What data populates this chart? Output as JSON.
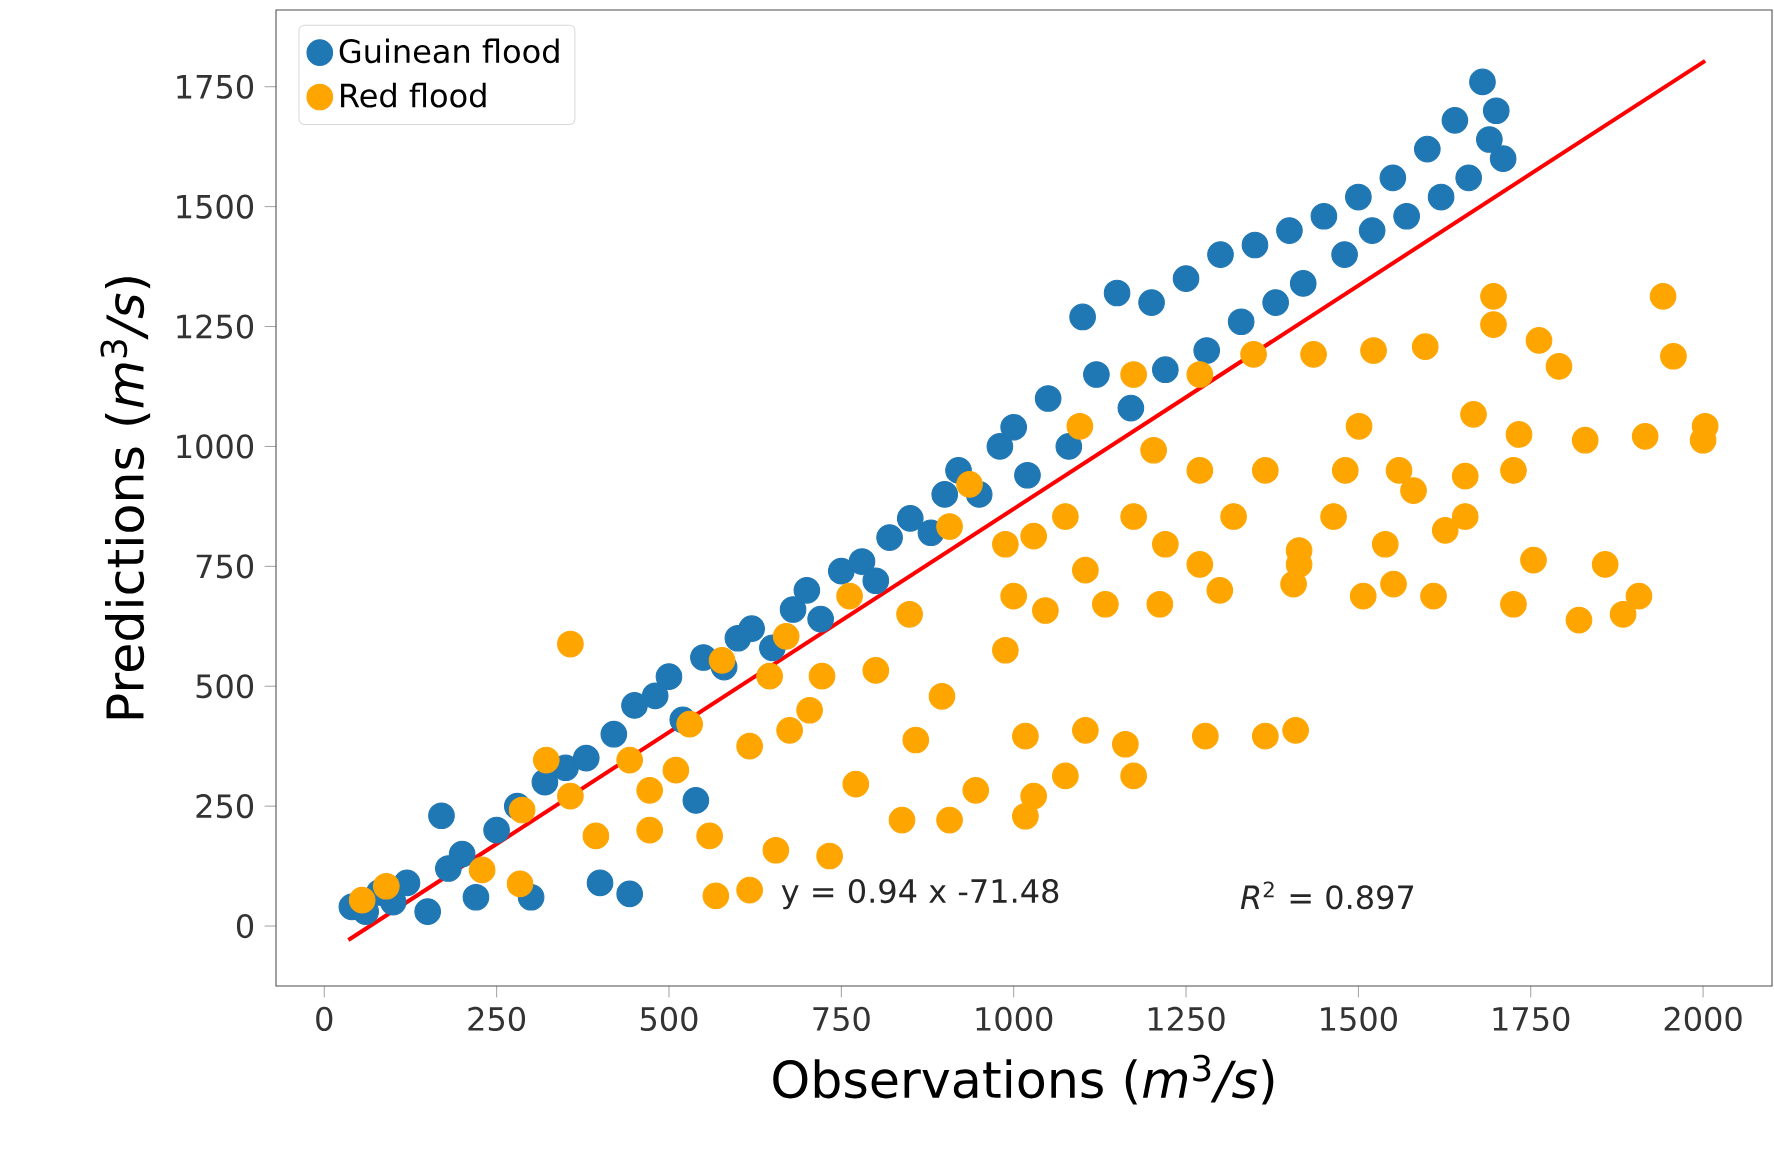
{
  "chart_data": {
    "type": "scatter",
    "xlabel": "Observations (*m*$^{3}$*/s*)",
    "ylabel": "Predictions (*m*$^{3}$*/s*)",
    "xlim": [
      -70,
      2100
    ],
    "ylim": [
      -125,
      1910
    ],
    "xticks": [
      0,
      250,
      500,
      750,
      1000,
      1250,
      1500,
      1750,
      2000
    ],
    "yticks": [
      0,
      250,
      500,
      750,
      1000,
      1250,
      1500,
      1750
    ],
    "grid": false,
    "legend": "top left",
    "annotations": [
      "y = 0.94 x -71.48",
      "*R*$^{2}$ = 0.897"
    ],
    "series": [
      {
        "name": "Guinean flood",
        "color": "#1f77b4",
        "marker": "circle",
        "x": [
          40,
          60,
          80,
          100,
          120,
          150,
          170,
          180,
          200,
          220,
          250,
          280,
          300,
          320,
          350,
          380,
          400,
          420,
          443,
          450,
          480,
          500,
          539,
          520,
          550,
          580,
          600,
          620,
          650,
          680,
          700,
          720,
          750,
          780,
          800,
          820,
          850,
          880,
          900,
          920,
          950,
          980,
          1000,
          1020,
          1050,
          1080,
          1100,
          1120,
          1150,
          1170,
          1200,
          1220,
          1250,
          1280,
          1300,
          1330,
          1350,
          1380,
          1400,
          1420,
          1450,
          1480,
          1500,
          1520,
          1550,
          1570,
          1600,
          1620,
          1640,
          1660,
          1680,
          1700,
          1710,
          1690
        ],
        "values": [
          40,
          30,
          70,
          50,
          90,
          30,
          230,
          120,
          150,
          60,
          200,
          250,
          60,
          300,
          330,
          350,
          90,
          400,
          67,
          460,
          480,
          520,
          262,
          430,
          560,
          540,
          600,
          620,
          580,
          660,
          700,
          640,
          740,
          760,
          720,
          810,
          850,
          820,
          900,
          950,
          900,
          1000,
          1040,
          940,
          1100,
          1000,
          1270,
          1150,
          1320,
          1080,
          1300,
          1160,
          1350,
          1200,
          1400,
          1260,
          1420,
          1300,
          1450,
          1340,
          1480,
          1400,
          1520,
          1450,
          1560,
          1480,
          1620,
          1520,
          1680,
          1560,
          1760,
          1700,
          1600,
          1640
        ]
      },
      {
        "name": "Red flood",
        "color": "#ffa500",
        "marker": "circle",
        "x": [
          55,
          90,
          357,
          322,
          287,
          229,
          284,
          577,
          670,
          646,
          762,
          936,
          907,
          849,
          896,
          858,
          675,
          771,
          838,
          907,
          945,
          568,
          617,
          472,
          394,
          559,
          655,
          733,
          443,
          510,
          617,
          704,
          722,
          800,
          530,
          357,
          472,
          1696,
          1942,
          1957,
          1791,
          1762,
          1696,
          1597,
          1522,
          1435,
          1348,
          1270,
          1174,
          1501,
          1667,
          1733,
          1829,
          1916,
          2003,
          2000,
          1096,
          1203,
          1270,
          1365,
          1481,
          1559,
          1655,
          1725,
          1580,
          1464,
          1655,
          1626,
          1174,
          1319,
          1075,
          988,
          1029,
          1220,
          1414,
          1539,
          1270,
          1414,
          1754,
          1858,
          1104,
          1551,
          1609,
          1907,
          1884,
          1820,
          1725,
          1507,
          1406,
          1299,
          1212,
          1133,
          1046,
          1000,
          988,
          1017,
          1104,
          1162,
          1278,
          1365,
          1409,
          1029,
          1075,
          1174,
          1017
        ],
        "values": [
          54,
          83,
          588,
          346,
          242,
          117,
          88,
          554,
          604,
          521,
          688,
          921,
          833,
          650,
          479,
          388,
          408,
          296,
          221,
          221,
          283,
          63,
          75,
          200,
          188,
          188,
          158,
          146,
          346,
          325,
          375,
          450,
          521,
          533,
          421,
          271,
          283,
          1313,
          1313,
          1188,
          1167,
          1221,
          1254,
          1208,
          1200,
          1192,
          1192,
          1150,
          1150,
          1042,
          1067,
          1025,
          1013,
          1021,
          1042,
          1013,
          1042,
          992,
          950,
          950,
          950,
          950,
          938,
          950,
          908,
          854,
          854,
          825,
          854,
          854,
          854,
          796,
          813,
          796,
          783,
          796,
          754,
          754,
          763,
          754,
          742,
          713,
          688,
          688,
          650,
          638,
          671,
          688,
          713,
          700,
          671,
          671,
          658,
          688,
          575,
          396,
          408,
          379,
          396,
          396,
          408,
          271,
          313,
          313,
          229
        ]
      },
      {
        "type": "line",
        "color": "#ff0000",
        "marker": "none",
        "x": [
          35,
          2003
        ],
        "values": [
          -29,
          1804
        ]
      }
    ]
  }
}
